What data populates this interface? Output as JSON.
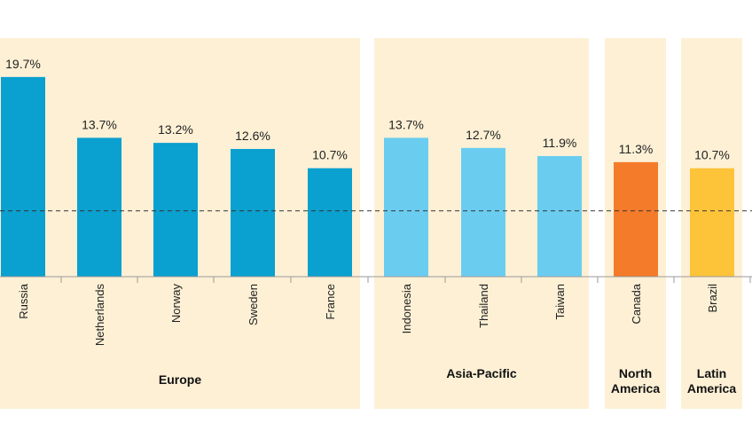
{
  "chart_data": {
    "type": "bar",
    "categories": [
      "Russia",
      "Netherlands",
      "Norway",
      "Sweden",
      "France",
      "Indonesia",
      "Thailand",
      "Taiwan",
      "Canada",
      "Brazil"
    ],
    "values": [
      19.7,
      13.7,
      13.2,
      12.6,
      10.7,
      13.7,
      12.7,
      11.9,
      11.3,
      10.7
    ],
    "value_labels": [
      "19.7%",
      "13.7%",
      "13.2%",
      "12.6%",
      "10.7%",
      "13.7%",
      "12.7%",
      "11.9%",
      "11.3%",
      "10.7%"
    ],
    "groups": [
      {
        "label_lines": [
          "Europe"
        ],
        "members": [
          0,
          1,
          2,
          3,
          4
        ],
        "color": "#0aa0cf"
      },
      {
        "label_lines": [
          "Asia-Pacific"
        ],
        "members": [
          5,
          6,
          7
        ],
        "color": "#6acdf0"
      },
      {
        "label_lines": [
          "North",
          "America"
        ],
        "members": [
          8
        ],
        "color": "#f47b2a"
      },
      {
        "label_lines": [
          "Latin",
          "America"
        ],
        "members": [
          9
        ],
        "color": "#fdc43a"
      }
    ],
    "reference_line": {
      "value": 6.5,
      "style": "dashed"
    },
    "ylim": [
      0,
      21
    ],
    "title": "",
    "xlabel": "",
    "ylabel": "",
    "grid": false,
    "background_color": "#fdf0d5"
  }
}
